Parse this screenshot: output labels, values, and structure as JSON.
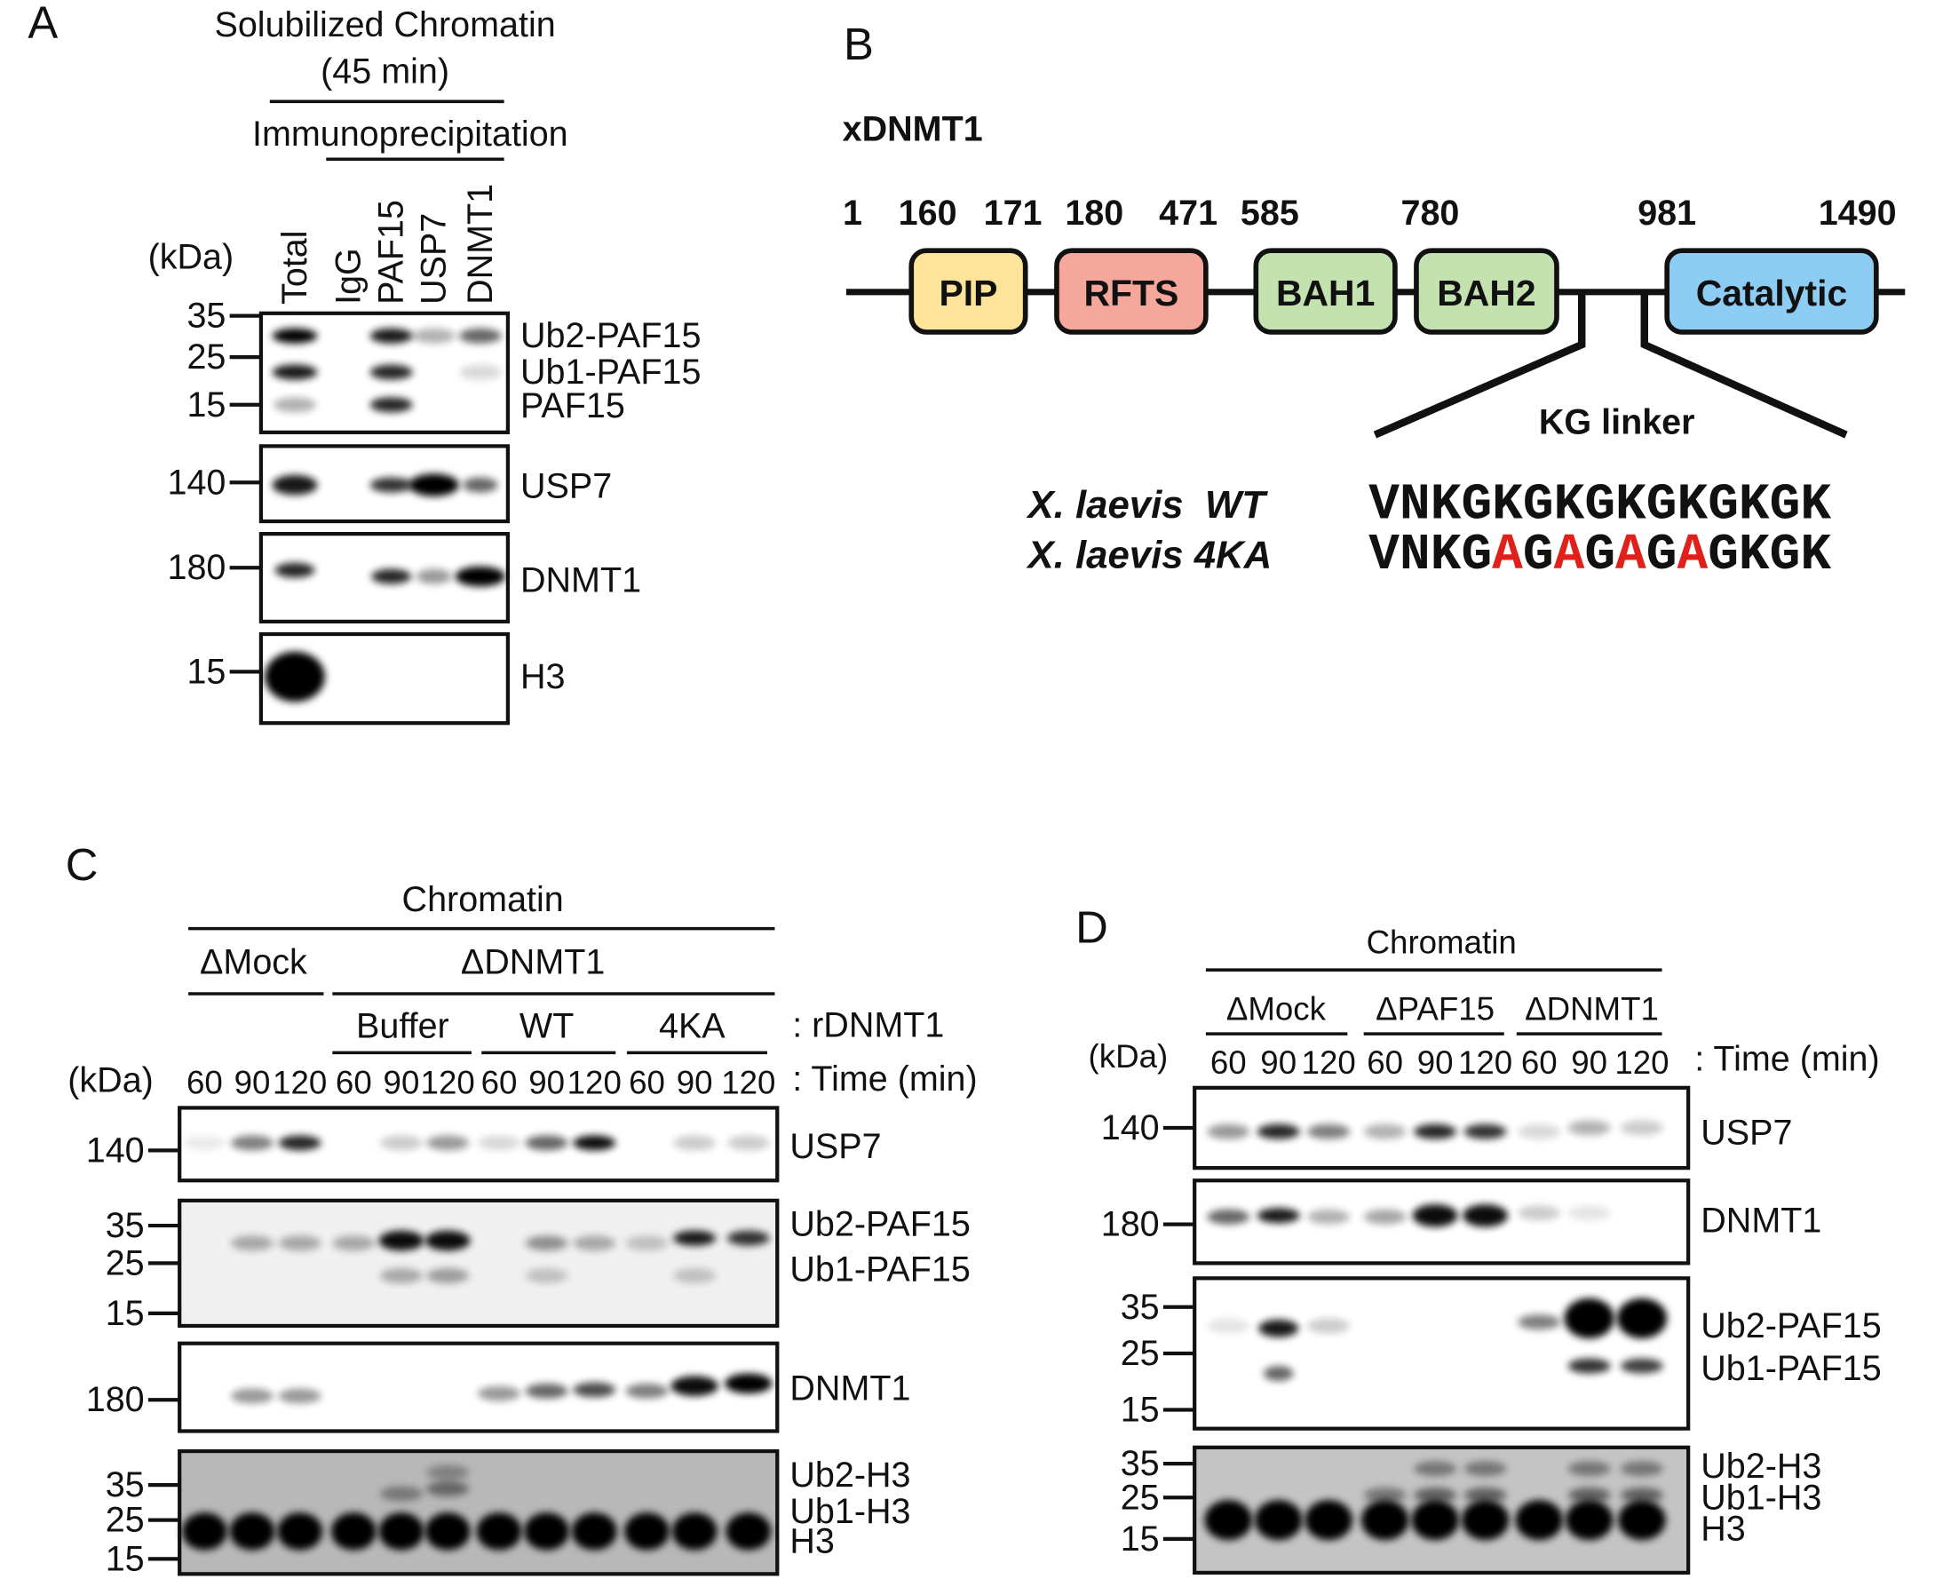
{
  "A": {
    "label": "A",
    "header": [
      "Solubilized Chromatin",
      "(45 min)"
    ],
    "ip": "Immunoprecipitation",
    "kda": "(kDa)",
    "lanes": [
      "Total",
      "IgG",
      "PAF15",
      "USP7",
      "DNMT1"
    ],
    "blots": [
      {
        "markers": [
          "35",
          "25",
          "15"
        ],
        "labels": [
          "Ub2-PAF15",
          "Ub1-PAF15",
          "PAF15"
        ]
      },
      {
        "markers": [
          "140"
        ],
        "labels": [
          "USP7"
        ]
      },
      {
        "markers": [
          "180"
        ],
        "labels": [
          "DNMT1"
        ]
      },
      {
        "markers": [
          "15"
        ],
        "labels": [
          "H3"
        ]
      }
    ]
  },
  "B": {
    "label": "B",
    "protein": "xDNMT1",
    "positions": [
      "1",
      "160",
      "171",
      "180",
      "471",
      "585",
      "780",
      "981",
      "1490"
    ],
    "domains": [
      "PIP",
      "RFTS",
      "BAH1",
      "BAH2",
      "Catalytic"
    ],
    "linker": "KG linker",
    "variants": [
      {
        "name": "X. laevis  WT",
        "sequence": "VNKGKGKGKGKGKGK"
      },
      {
        "name": "X. laevis 4KA",
        "sequence": "VNKGAGAGAGAGKGK"
      }
    ]
  },
  "C": {
    "label": "C",
    "title": "Chromatin",
    "groups": [
      "ΔMock",
      "ΔDNMT1"
    ],
    "subgroups": [
      "Buffer",
      "WT",
      "4KA"
    ],
    "subgroup_caption": ": rDNMT1",
    "kda": "(kDa)",
    "times": [
      "60",
      "90",
      "120",
      "60",
      "90",
      "120",
      "60",
      "90",
      "120",
      "60",
      "90",
      "120"
    ],
    "time_caption": ": Time (min)",
    "blots": [
      {
        "markers": [
          "140"
        ],
        "labels": [
          "USP7"
        ]
      },
      {
        "markers": [
          "35",
          "25",
          "15"
        ],
        "labels": [
          "Ub2-PAF15",
          "Ub1-PAF15"
        ]
      },
      {
        "markers": [
          "180"
        ],
        "labels": [
          "DNMT1"
        ]
      },
      {
        "markers": [
          "35",
          "25",
          "15"
        ],
        "labels": [
          "Ub2-H3",
          "Ub1-H3",
          "H3"
        ]
      }
    ]
  },
  "D": {
    "label": "D",
    "title": "Chromatin",
    "groups": [
      "ΔMock",
      "ΔPAF15",
      "ΔDNMT1"
    ],
    "kda": "(kDa)",
    "times": [
      "60",
      "90",
      "120",
      "60",
      "90",
      "120",
      "60",
      "90",
      "120"
    ],
    "time_caption": ": Time (min)",
    "blots": [
      {
        "markers": [
          "140"
        ],
        "labels": [
          "USP7"
        ]
      },
      {
        "markers": [
          "180"
        ],
        "labels": [
          "DNMT1"
        ]
      },
      {
        "markers": [
          "35",
          "25",
          "15"
        ],
        "labels": [
          "Ub2-PAF15",
          "Ub1-PAF15"
        ]
      },
      {
        "markers": [
          "35",
          "25",
          "15"
        ],
        "labels": [
          "Ub2-H3",
          "Ub1-H3",
          "H3"
        ]
      }
    ]
  }
}
